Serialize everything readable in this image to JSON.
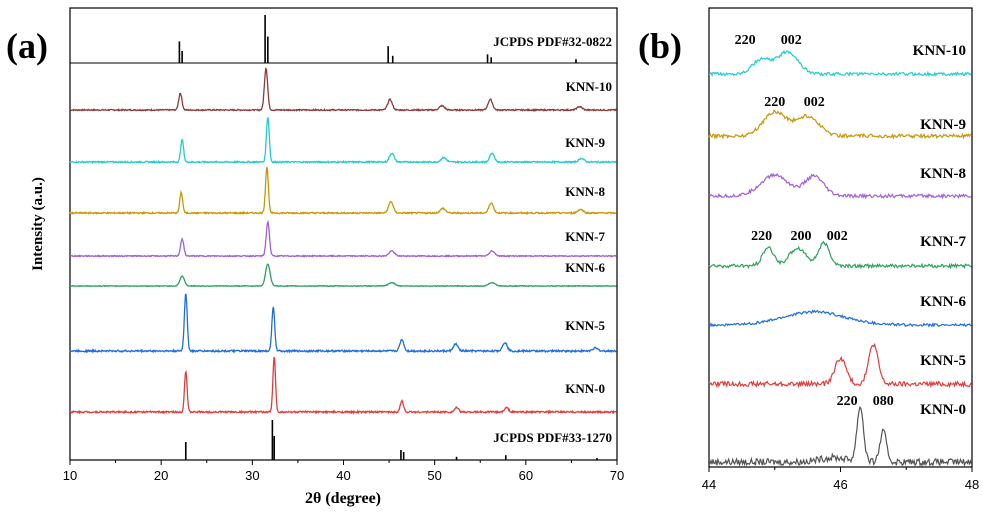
{
  "chart_data": [
    {
      "panel_label": "(a)",
      "type": "line",
      "xlabel": "2θ (degree)",
      "ylabel": "Intensity (a.u.)",
      "xlim": [
        10,
        70
      ],
      "x_ticks": [
        10,
        20,
        30,
        40,
        50,
        60,
        70
      ],
      "series": [
        {
          "name": "JCPDS PDF#32-0822",
          "kind": "reference",
          "color": "#000000",
          "peaks": [
            [
              22.0,
              0.45
            ],
            [
              22.3,
              0.25
            ],
            [
              31.4,
              1.0
            ],
            [
              31.7,
              0.55
            ],
            [
              44.9,
              0.35
            ],
            [
              45.4,
              0.15
            ],
            [
              55.8,
              0.18
            ],
            [
              56.2,
              0.12
            ],
            [
              65.5,
              0.08
            ]
          ]
        },
        {
          "name": "KNN-10",
          "kind": "pattern",
          "color": "#8b3a3a",
          "peaks": [
            [
              22.1,
              0.4,
              0.25
            ],
            [
              31.5,
              1.0,
              0.25
            ],
            [
              45.1,
              0.25,
              0.35
            ],
            [
              50.8,
              0.1,
              0.4
            ],
            [
              56.1,
              0.25,
              0.35
            ],
            [
              65.9,
              0.08,
              0.4
            ]
          ]
        },
        {
          "name": "KNN-9",
          "kind": "pattern",
          "color": "#22cccc",
          "peaks": [
            [
              22.3,
              0.5,
              0.22
            ],
            [
              31.7,
              1.0,
              0.22
            ],
            [
              45.3,
              0.2,
              0.35
            ],
            [
              51.0,
              0.1,
              0.4
            ],
            [
              56.3,
              0.2,
              0.35
            ],
            [
              66.1,
              0.08,
              0.4
            ]
          ]
        },
        {
          "name": "KNN-8",
          "kind": "pattern",
          "color": "#c8980a",
          "peaks": [
            [
              22.2,
              0.45,
              0.22
            ],
            [
              31.6,
              1.0,
              0.22
            ],
            [
              45.2,
              0.25,
              0.35
            ],
            [
              50.9,
              0.1,
              0.4
            ],
            [
              56.2,
              0.22,
              0.35
            ],
            [
              66.0,
              0.08,
              0.4
            ]
          ]
        },
        {
          "name": "KNN-7",
          "kind": "pattern",
          "color": "#a060d8",
          "peaks": [
            [
              22.3,
              0.5,
              0.25
            ],
            [
              31.7,
              1.0,
              0.25
            ],
            [
              45.3,
              0.15,
              0.4
            ],
            [
              56.3,
              0.15,
              0.4
            ]
          ]
        },
        {
          "name": "KNN-6",
          "kind": "pattern",
          "color": "#2fa060",
          "peaks": [
            [
              22.3,
              0.45,
              0.35
            ],
            [
              31.7,
              1.0,
              0.35
            ],
            [
              45.3,
              0.15,
              0.5
            ],
            [
              56.3,
              0.15,
              0.5
            ]
          ]
        },
        {
          "name": "KNN-5",
          "kind": "pattern",
          "color": "#1f6fd8",
          "peaks": [
            [
              22.7,
              1.0,
              0.22
            ],
            [
              32.3,
              0.75,
              0.22
            ],
            [
              46.4,
              0.2,
              0.3
            ],
            [
              52.3,
              0.12,
              0.35
            ],
            [
              57.7,
              0.15,
              0.35
            ],
            [
              67.6,
              0.05,
              0.4
            ]
          ]
        },
        {
          "name": "KNN-0",
          "kind": "pattern",
          "color": "#e53b3b",
          "peaks": [
            [
              22.7,
              0.75,
              0.2
            ],
            [
              32.4,
              1.0,
              0.2
            ],
            [
              46.4,
              0.2,
              0.25
            ],
            [
              52.4,
              0.08,
              0.3
            ],
            [
              57.9,
              0.08,
              0.3
            ]
          ]
        },
        {
          "name": "JCPDS PDF#33-1270",
          "kind": "reference",
          "color": "#000000",
          "peaks": [
            [
              22.7,
              0.45
            ],
            [
              32.2,
              1.0
            ],
            [
              32.4,
              0.6
            ],
            [
              46.3,
              0.25
            ],
            [
              46.6,
              0.2
            ],
            [
              52.4,
              0.08
            ],
            [
              57.8,
              0.12
            ],
            [
              67.8,
              0.05
            ]
          ]
        }
      ]
    },
    {
      "panel_label": "(b)",
      "type": "line",
      "xlim": [
        44,
        48
      ],
      "x_ticks": [
        44,
        46,
        48
      ],
      "series": [
        {
          "name": "KNN-10",
          "color": "#22cccc",
          "peaks": [
            [
              44.8,
              0.55,
              0.2
            ],
            [
              45.2,
              0.85,
              0.22
            ]
          ],
          "annotations": [
            {
              "text": "220",
              "x": 44.55
            },
            {
              "text": "002",
              "x": 45.25
            }
          ]
        },
        {
          "name": "KNN-9",
          "color": "#c8980a",
          "peaks": [
            [
              45.0,
              0.8,
              0.25
            ],
            [
              45.5,
              0.65,
              0.25
            ]
          ],
          "annotations": [
            {
              "text": "220",
              "x": 45.0
            },
            {
              "text": "002",
              "x": 45.6
            }
          ]
        },
        {
          "name": "KNN-8",
          "color": "#a060d8",
          "peaks": [
            [
              45.0,
              0.75,
              0.3
            ],
            [
              45.6,
              0.7,
              0.2
            ]
          ],
          "annotations": []
        },
        {
          "name": "KNN-7",
          "color": "#2fa060",
          "peaks": [
            [
              44.9,
              0.6,
              0.12
            ],
            [
              45.35,
              0.6,
              0.18
            ],
            [
              45.75,
              0.75,
              0.12
            ]
          ],
          "annotations": [
            {
              "text": "220",
              "x": 44.8
            },
            {
              "text": "200",
              "x": 45.4
            },
            {
              "text": "002",
              "x": 45.95
            }
          ]
        },
        {
          "name": "KNN-6",
          "color": "#1f6fd8",
          "peaks": [
            [
              45.6,
              0.6,
              0.65
            ]
          ],
          "annotations": []
        },
        {
          "name": "KNN-5",
          "color": "#e53b3b",
          "peaks": [
            [
              46.0,
              0.65,
              0.12
            ],
            [
              46.5,
              1.0,
              0.1
            ]
          ],
          "annotations": []
        },
        {
          "name": "KNN-0",
          "color": "#555555",
          "peaks": [
            [
              46.3,
              1.0,
              0.07
            ],
            [
              46.65,
              0.55,
              0.07
            ],
            [
              45.9,
              0.08,
              0.3
            ]
          ],
          "annotations": [
            {
              "text": "220",
              "x": 46.1
            },
            {
              "text": "080",
              "x": 46.65
            }
          ]
        }
      ]
    }
  ]
}
